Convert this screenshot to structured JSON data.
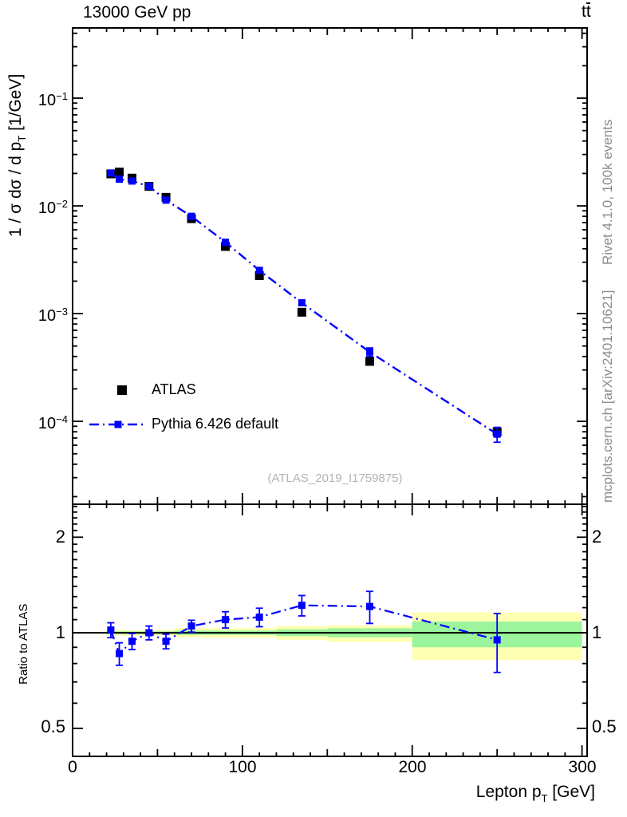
{
  "header": {
    "title_left": "13000 GeV pp",
    "title_right": {
      "t1": "t",
      "t2": "t"
    }
  },
  "right_margin": {
    "top_note": "Rivet 4.1.0,  100k events",
    "bottom_note": "mcplots.cern.ch [arXiv:2401.10621]"
  },
  "watermark": "(ATLAS_2019_I1759875)",
  "legend": {
    "entries": [
      {
        "label": "ATLAS",
        "marker": "black-filled-square"
      },
      {
        "label": "Pythia 6.426 default",
        "marker": "blue-square-on-dashdot-line"
      }
    ]
  },
  "axes": {
    "x_label": {
      "prefix": "Lepton p",
      "sub": "T",
      "suffix": " [GeV]"
    },
    "x_tick_labels": [
      "0",
      "100",
      "200",
      "300"
    ],
    "y_label_top": {
      "prefix": "1 / σ  dσ / d p",
      "sub": "T",
      "suffix": " [1/GeV]"
    },
    "y_tick_labels_top": [
      {
        "base": "10",
        "exp": "−1"
      },
      {
        "base": "10",
        "exp": "−2"
      },
      {
        "base": "10",
        "exp": "−3"
      },
      {
        "base": "10",
        "exp": "−4"
      }
    ],
    "y_label_bottom": "Ratio to ATLAS",
    "y_tick_labels_bottom": [
      "2",
      "1",
      "0.5"
    ]
  },
  "chart_data": {
    "type": "line",
    "title": "13000 GeV pp",
    "process_label": "ttbar",
    "xlabel": "Lepton pT [GeV]",
    "analysis": "(ATLAS_2019_I1759875)",
    "x_range": [
      0,
      303
    ],
    "x_ticks": [
      0,
      100,
      200,
      300
    ],
    "x_medium_step": 50,
    "x_minor_step": 10,
    "top_panel": {
      "ylabel": "1 / σ dσ / d pT [1/GeV]",
      "y_scale": "log",
      "y_range": [
        1.7e-05,
        0.4486
      ],
      "y_ticks": [
        0.1,
        0.01,
        0.001,
        0.0001
      ],
      "legend_position": "bottom-left",
      "grid": false
    },
    "bottom_panel": {
      "ylabel": "Ratio to ATLAS",
      "y_scale": "log",
      "y_range": [
        0.408,
        2.54
      ],
      "y_ticks": [
        2,
        1,
        0.5
      ],
      "minor_tick_step": 0.1,
      "reference_line": 1
    },
    "bin_edges": [
      20,
      25,
      30,
      40,
      50,
      60,
      80,
      100,
      120,
      150,
      200,
      300
    ],
    "x": [
      22.5,
      27.5,
      35,
      45,
      55,
      70,
      90,
      110,
      135,
      175,
      250
    ],
    "series": [
      {
        "name": "ATLAS",
        "color": "#000000",
        "marker": "filled-square",
        "marker_size": 11,
        "line": "none",
        "values": [
          0.0198,
          0.0206,
          0.0181,
          0.0152,
          0.012,
          0.0076,
          0.0042,
          0.00225,
          0.00103,
          0.00036,
          8e-05
        ],
        "yerr": [
          0,
          0,
          0,
          0,
          0,
          0,
          0,
          0,
          0,
          0,
          7e-06
        ]
      },
      {
        "name": "Pythia 6.426 default",
        "color": "#0000ff",
        "marker": "filled-square",
        "marker_size": 9,
        "line": "dashdot",
        "values": [
          0.0202,
          0.0177,
          0.017,
          0.0152,
          0.0113,
          0.008,
          0.0046,
          0.00252,
          0.00126,
          0.00044,
          7.6e-05
        ],
        "yerr": [
          0,
          0,
          0,
          0,
          0,
          0,
          0,
          0,
          6e-05,
          4e-05,
          1.2e-05
        ]
      }
    ],
    "ratio": {
      "name": "Pythia 6.426 default / ATLAS",
      "values": [
        1.02,
        0.86,
        0.94,
        1.0,
        0.94,
        1.05,
        1.1,
        1.12,
        1.22,
        1.21,
        0.95
      ],
      "yerr": [
        0.055,
        0.07,
        0.055,
        0.05,
        0.05,
        0.045,
        0.065,
        0.075,
        0.09,
        0.14,
        0.2
      ],
      "bands": [
        {
          "x0": 20,
          "x1": 60,
          "yellow": [
            0.98,
            1.02
          ],
          "green": [
            0.99,
            1.01
          ]
        },
        {
          "x0": 60,
          "x1": 120,
          "yellow": [
            0.966,
            1.035
          ],
          "green": [
            0.985,
            1.016
          ]
        },
        {
          "x0": 120,
          "x1": 150,
          "yellow": [
            0.95,
            1.05
          ],
          "green": [
            0.976,
            1.025
          ]
        },
        {
          "x0": 150,
          "x1": 200,
          "yellow": [
            0.935,
            1.056
          ],
          "green": [
            0.968,
            1.033
          ]
        },
        {
          "x0": 200,
          "x1": 300,
          "yellow": [
            0.82,
            1.16
          ],
          "green": [
            0.9,
            1.085
          ]
        }
      ],
      "band_colors": {
        "yellow": "#ffffb3",
        "green": "#9cf49c"
      }
    }
  }
}
